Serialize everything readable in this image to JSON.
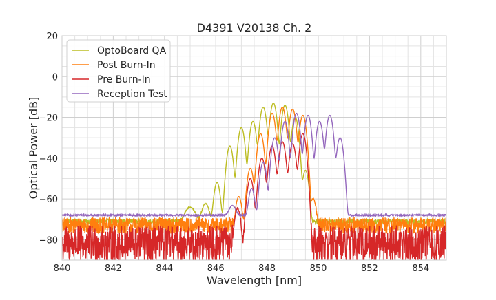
{
  "chart_data": {
    "type": "line",
    "title": "D4391 V20138 Ch. 2",
    "xlabel": "Wavelength [nm]",
    "ylabel": "Optical Power [dB]",
    "xlim": [
      840,
      855
    ],
    "ylim": [
      -90,
      20
    ],
    "xticks": [
      840,
      842,
      844,
      846,
      848,
      850,
      852,
      854
    ],
    "yticks": [
      20,
      0,
      -20,
      -40,
      -60,
      -80
    ],
    "xtick_labels": [
      "840",
      "842",
      "844",
      "846",
      "848",
      "850",
      "852",
      "854"
    ],
    "ytick_labels": [
      "20",
      "0",
      "−20",
      "−40",
      "−60",
      "−80"
    ],
    "grid": true,
    "legend_position": "top-left",
    "series": [
      {
        "name": "OptoBoard QA",
        "color": "#bcbd22",
        "floor": -71,
        "noise": 1.2,
        "peaks": [
          {
            "x": 845.0,
            "y": -65,
            "w": 0.15
          },
          {
            "x": 845.6,
            "y": -63,
            "w": 0.1
          },
          {
            "x": 846.05,
            "y": -52,
            "w": 0.07
          },
          {
            "x": 846.55,
            "y": -34,
            "w": 0.07
          },
          {
            "x": 847.0,
            "y": -25,
            "w": 0.07
          },
          {
            "x": 847.45,
            "y": -22,
            "w": 0.07
          },
          {
            "x": 847.85,
            "y": -15,
            "w": 0.07
          },
          {
            "x": 848.25,
            "y": -13,
            "w": 0.07
          },
          {
            "x": 848.7,
            "y": -14,
            "w": 0.07
          },
          {
            "x": 849.1,
            "y": -20,
            "w": 0.07
          },
          {
            "x": 849.5,
            "y": -46,
            "w": 0.07
          }
        ]
      },
      {
        "name": "Post Burn-In",
        "color": "#ff7f0e",
        "floor": -73,
        "noise": 4,
        "peaks": [
          {
            "x": 846.9,
            "y": -59,
            "w": 0.07
          },
          {
            "x": 847.35,
            "y": -45,
            "w": 0.07
          },
          {
            "x": 847.75,
            "y": -28,
            "w": 0.07
          },
          {
            "x": 848.2,
            "y": -18,
            "w": 0.07
          },
          {
            "x": 848.6,
            "y": -15,
            "w": 0.07
          },
          {
            "x": 849.0,
            "y": -16,
            "w": 0.07
          },
          {
            "x": 849.4,
            "y": -19,
            "w": 0.07
          },
          {
            "x": 849.8,
            "y": -60,
            "w": 0.07
          }
        ]
      },
      {
        "name": "Pre Burn-In",
        "color": "#d62728",
        "floor": -82,
        "noise": 9,
        "peaks": [
          {
            "x": 846.85,
            "y": -65,
            "w": 0.07
          },
          {
            "x": 847.35,
            "y": -50,
            "w": 0.07
          },
          {
            "x": 847.8,
            "y": -40,
            "w": 0.07
          },
          {
            "x": 848.2,
            "y": -34,
            "w": 0.07
          },
          {
            "x": 848.6,
            "y": -32,
            "w": 0.07
          },
          {
            "x": 849.0,
            "y": -33,
            "w": 0.07
          },
          {
            "x": 849.4,
            "y": -28,
            "w": 0.07
          }
        ]
      },
      {
        "name": "Reception Test",
        "color": "#9467bd",
        "floor": -68,
        "noise": 0.4,
        "peaks": [
          {
            "x": 846.65,
            "y": -65,
            "w": 0.1
          },
          {
            "x": 847.4,
            "y": -55,
            "w": 0.07
          },
          {
            "x": 847.85,
            "y": -42,
            "w": 0.07
          },
          {
            "x": 848.3,
            "y": -30,
            "w": 0.07
          },
          {
            "x": 848.7,
            "y": -22,
            "w": 0.07
          },
          {
            "x": 849.15,
            "y": -18,
            "w": 0.07
          },
          {
            "x": 849.6,
            "y": -19,
            "w": 0.07
          },
          {
            "x": 850.05,
            "y": -22,
            "w": 0.07
          },
          {
            "x": 850.45,
            "y": -19,
            "w": 0.07
          },
          {
            "x": 850.85,
            "y": -30,
            "w": 0.07
          }
        ]
      }
    ]
  }
}
